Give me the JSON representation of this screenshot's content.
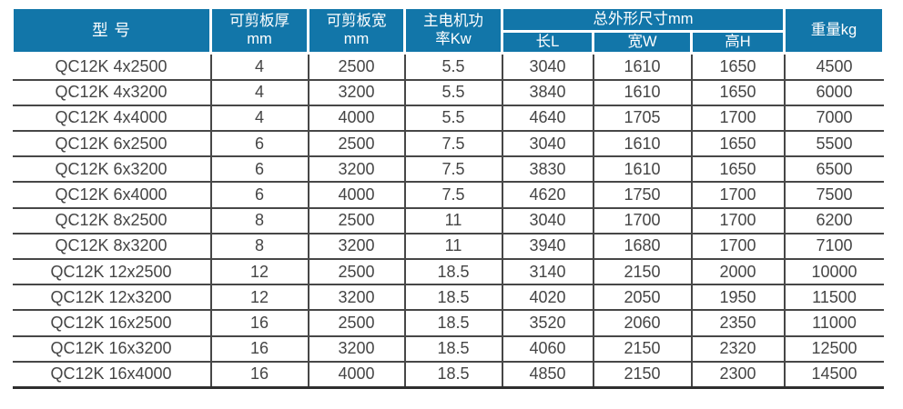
{
  "table": {
    "header": {
      "model": "型 号",
      "thickness": {
        "line1": "可剪板厚",
        "line2": "mm"
      },
      "plate_width": {
        "line1": "可剪板宽",
        "line2": "mm"
      },
      "power": {
        "line1": "主电机功",
        "line2": "率Kw"
      },
      "dims_group": "总外形尺寸mm",
      "dim_length": "长L",
      "dim_width": "宽W",
      "dim_height": "高H",
      "weight": "重量kg"
    },
    "columns": [
      "model",
      "thickness-mm",
      "plate-width-mm",
      "motor-power-kw",
      "length-l",
      "width-w",
      "height-h",
      "weight-kg"
    ],
    "rows": [
      [
        "QC12K 4x2500",
        "4",
        "2500",
        "5.5",
        "3040",
        "1610",
        "1650",
        "4500"
      ],
      [
        "QC12K 4x3200",
        "4",
        "3200",
        "5.5",
        "3840",
        "1610",
        "1650",
        "6000"
      ],
      [
        "QC12K 4x4000",
        "4",
        "4000",
        "5.5",
        "4640",
        "1705",
        "1700",
        "7000"
      ],
      [
        "QC12K 6x2500",
        "6",
        "2500",
        "7.5",
        "3040",
        "1610",
        "1650",
        "5500"
      ],
      [
        "QC12K 6x3200",
        "6",
        "3200",
        "7.5",
        "3830",
        "1610",
        "1650",
        "6500"
      ],
      [
        "QC12K 6x4000",
        "6",
        "4000",
        "7.5",
        "4620",
        "1750",
        "1700",
        "7500"
      ],
      [
        "QC12K 8x2500",
        "8",
        "2500",
        "11",
        "3040",
        "1700",
        "1700",
        "6200"
      ],
      [
        "QC12K 8x3200",
        "8",
        "3200",
        "11",
        "3940",
        "1680",
        "1700",
        "7100"
      ],
      [
        "QC12K 12x2500",
        "12",
        "2500",
        "18.5",
        "3140",
        "2150",
        "2000",
        "10000"
      ],
      [
        "QC12K 12x3200",
        "12",
        "3200",
        "18.5",
        "4020",
        "2050",
        "1950",
        "11500"
      ],
      [
        "QC12K 16x2500",
        "16",
        "2500",
        "18.5",
        "3520",
        "2060",
        "2350",
        "11000"
      ],
      [
        "QC12K 16x3200",
        "16",
        "3200",
        "18.5",
        "4060",
        "2150",
        "2320",
        "12500"
      ],
      [
        "QC12K 16x4000",
        "16",
        "4000",
        "18.5",
        "4850",
        "2150",
        "2300",
        "14500"
      ]
    ]
  },
  "colors": {
    "header_bg": "#1276a9",
    "header_text": "#ffffff",
    "body_text": "#454545",
    "grid_line": "#474747",
    "bottom_border": "#2e2e2e"
  }
}
